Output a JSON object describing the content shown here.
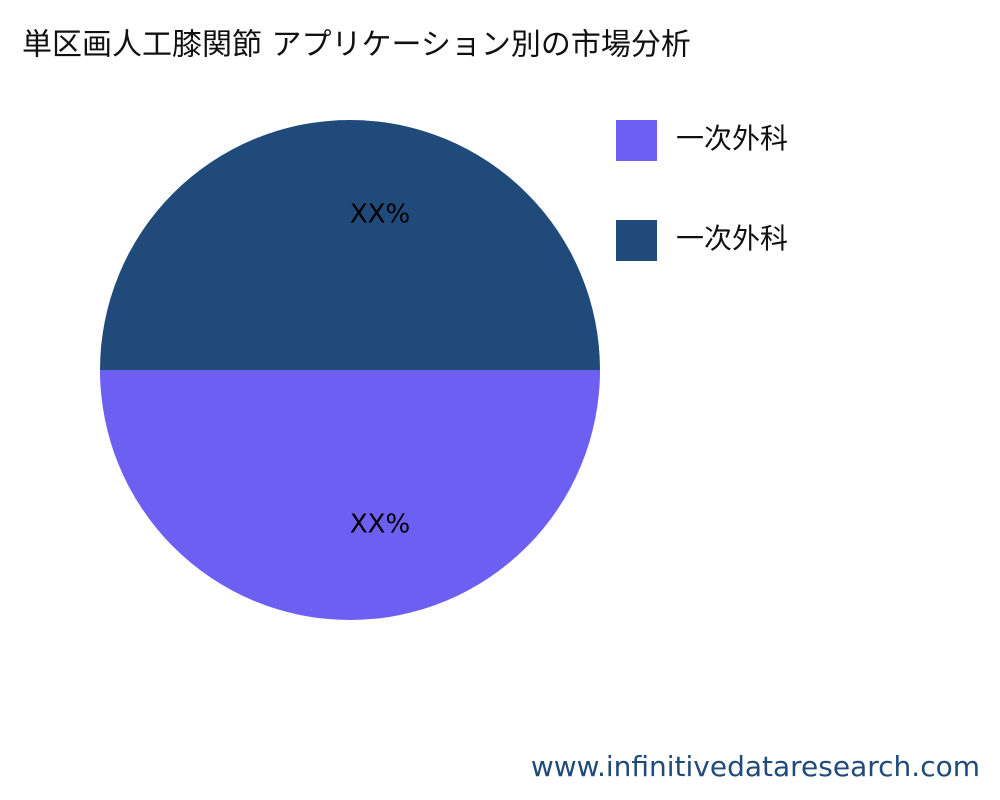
{
  "chart_data": {
    "type": "pie",
    "title": "単区画人工膝関節 アプリケーション別の市場分析",
    "categories": [
      "一次外科",
      "一次外科"
    ],
    "values": [
      50,
      50
    ],
    "value_labels": [
      "XX%",
      "XX%"
    ],
    "colors": [
      "#6c5ff2",
      "#1f4a7a"
    ],
    "legend": "right",
    "watermark": "www.infinitivedataresearch.com"
  }
}
